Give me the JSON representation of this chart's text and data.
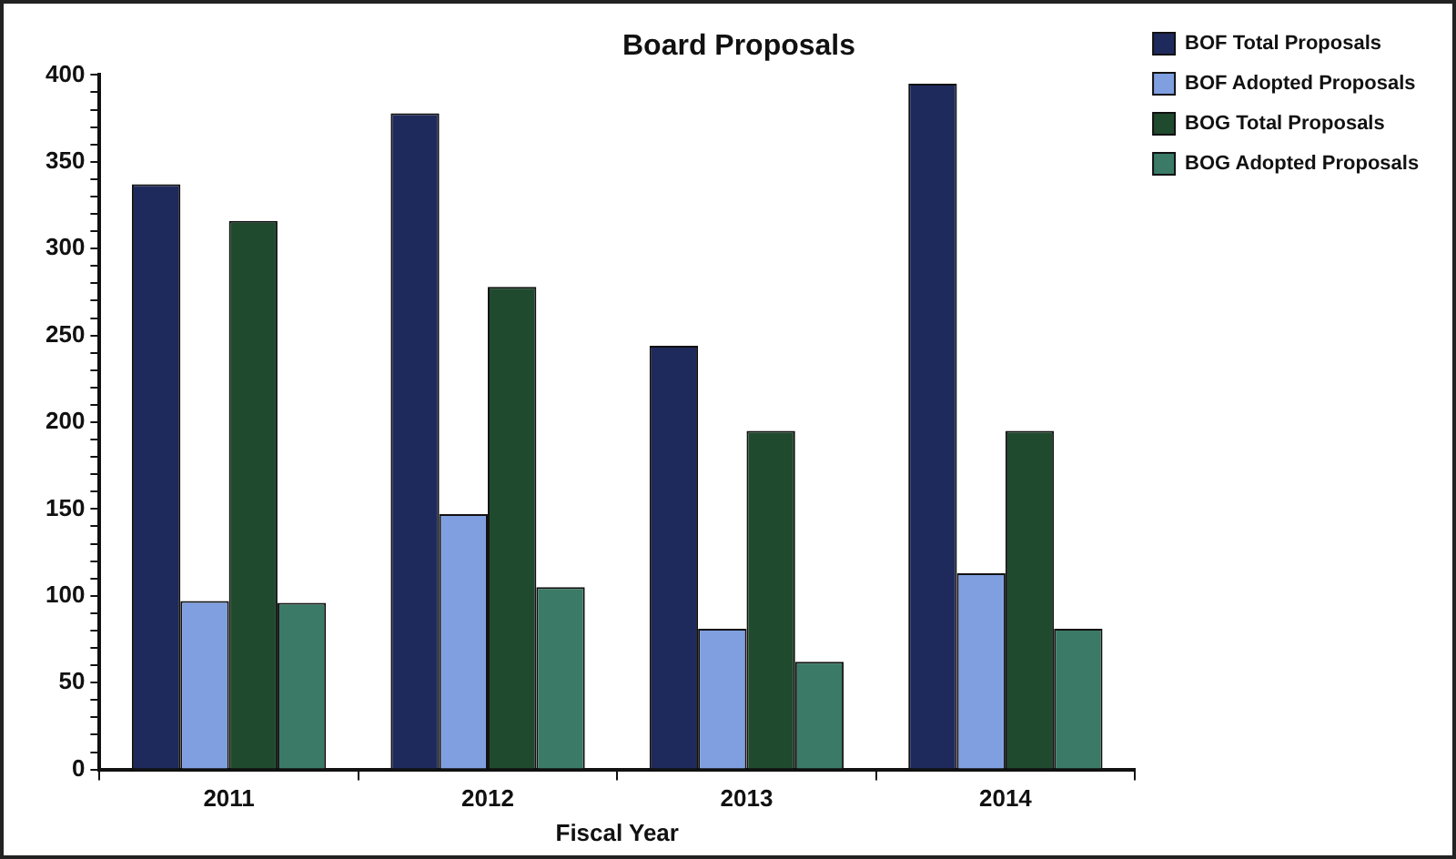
{
  "chart_data": {
    "type": "bar",
    "title": "Board Proposals",
    "xlabel": "Fiscal Year",
    "categories": [
      "2011",
      "2012",
      "2013",
      "2014"
    ],
    "series": [
      {
        "name": "BOF Total Proposals",
        "color": "#1f2a5c",
        "values": [
          337,
          378,
          244,
          395
        ]
      },
      {
        "name": "BOF Adopted Proposals",
        "color": "#7f9fe0",
        "values": [
          97,
          147,
          81,
          113
        ]
      },
      {
        "name": "BOG Total Proposals",
        "color": "#1f4a2e",
        "values": [
          316,
          278,
          195,
          195
        ]
      },
      {
        "name": "BOG Adopted Proposals",
        "color": "#3a7a66",
        "values": [
          96,
          105,
          62,
          81
        ]
      }
    ],
    "ylim": [
      0,
      400
    ],
    "yticks": [
      0,
      {
        "value": 10,
        "label": null
      },
      {
        "value": 20,
        "label": null
      },
      {
        "value": 30,
        "label": null
      },
      {
        "value": 40,
        "label": null
      },
      50,
      {
        "value": 60,
        "label": null
      },
      {
        "value": 70,
        "label": null
      },
      {
        "value": 80,
        "label": null
      },
      {
        "value": 90,
        "label": null
      },
      100,
      {
        "value": 110,
        "label": null
      },
      {
        "value": 120,
        "label": null
      },
      {
        "value": 130,
        "label": null
      },
      {
        "value": 140,
        "label": null
      },
      150,
      {
        "value": 160,
        "label": null
      },
      {
        "value": 170,
        "label": null
      },
      {
        "value": 180,
        "label": null
      },
      {
        "value": 190,
        "label": null
      },
      200,
      {
        "value": 210,
        "label": null
      },
      {
        "value": 220,
        "label": null
      },
      {
        "value": 230,
        "label": null
      },
      {
        "value": 240,
        "label": null
      },
      250,
      {
        "value": 260,
        "label": null
      },
      {
        "value": 270,
        "label": null
      },
      {
        "value": 280,
        "label": null
      },
      {
        "value": 290,
        "label": null
      },
      300,
      {
        "value": 310,
        "label": null
      },
      {
        "value": 320,
        "label": null
      },
      {
        "value": 330,
        "label": null
      },
      {
        "value": 340,
        "label": null
      },
      350,
      {
        "value": 360,
        "label": null
      },
      {
        "value": 370,
        "label": null
      },
      {
        "value": 380,
        "label": null
      },
      {
        "value": 390,
        "label": null
      },
      400
    ],
    "grid": false,
    "legend": "top right"
  }
}
